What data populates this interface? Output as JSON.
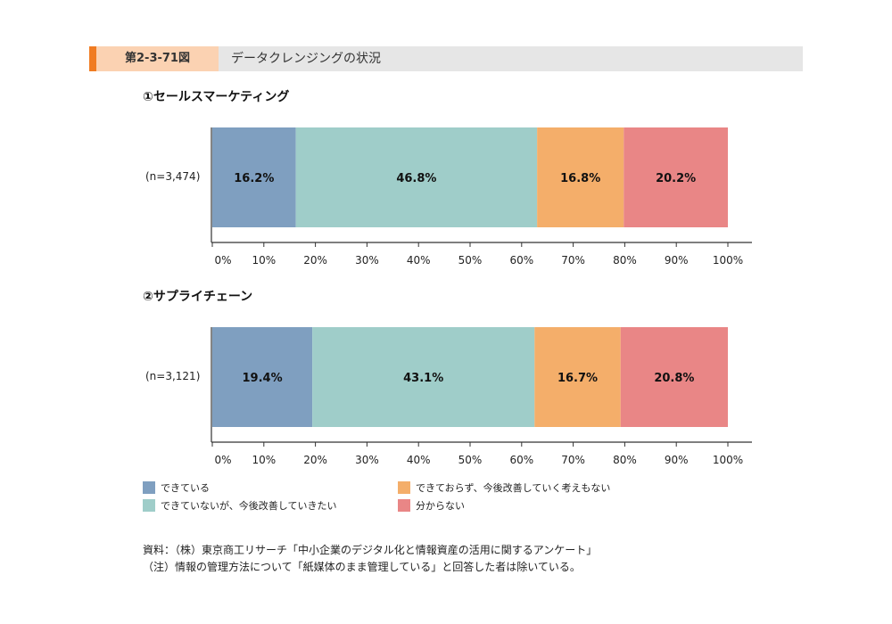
{
  "header": {
    "figure_no": "第2-3-71図",
    "title": "データクレンジングの状況"
  },
  "chart_data": [
    {
      "type": "bar",
      "orientation": "horizontal-stacked",
      "title": "①セールスマーケティング",
      "category": "(n=3,474)",
      "values": [
        16.2,
        46.8,
        16.8,
        20.2
      ],
      "labels": [
        "16.2%",
        "46.8%",
        "16.8%",
        "20.2%"
      ],
      "xticks": [
        "0%",
        "10%",
        "20%",
        "30%",
        "40%",
        "50%",
        "60%",
        "70%",
        "80%",
        "90%",
        "100%"
      ],
      "xlim": [
        0,
        100
      ]
    },
    {
      "type": "bar",
      "orientation": "horizontal-stacked",
      "title": "②サプライチェーン",
      "category": "(n=3,121)",
      "values": [
        19.4,
        43.1,
        16.7,
        20.8
      ],
      "labels": [
        "19.4%",
        "43.1%",
        "16.7%",
        "20.8%"
      ],
      "xticks": [
        "0%",
        "10%",
        "20%",
        "30%",
        "40%",
        "50%",
        "60%",
        "70%",
        "80%",
        "90%",
        "100%"
      ],
      "xlim": [
        0,
        100
      ]
    }
  ],
  "legend": [
    {
      "label": "できている",
      "color": "#7f9fc0"
    },
    {
      "label": "できていないが、今後改善していきたい",
      "color": "#9fcdc9"
    },
    {
      "label": "できておらず、今後改善していく考えもない",
      "color": "#f4ae6a"
    },
    {
      "label": "分からない",
      "color": "#e98686"
    }
  ],
  "notes": {
    "source": "資料：（株）東京商工リサーチ「中小企業のデジタル化と情報資産の活用に関するアンケート」",
    "note": "（注）情報の管理方法について「紙媒体のまま管理している」と回答した者は除いている。"
  }
}
